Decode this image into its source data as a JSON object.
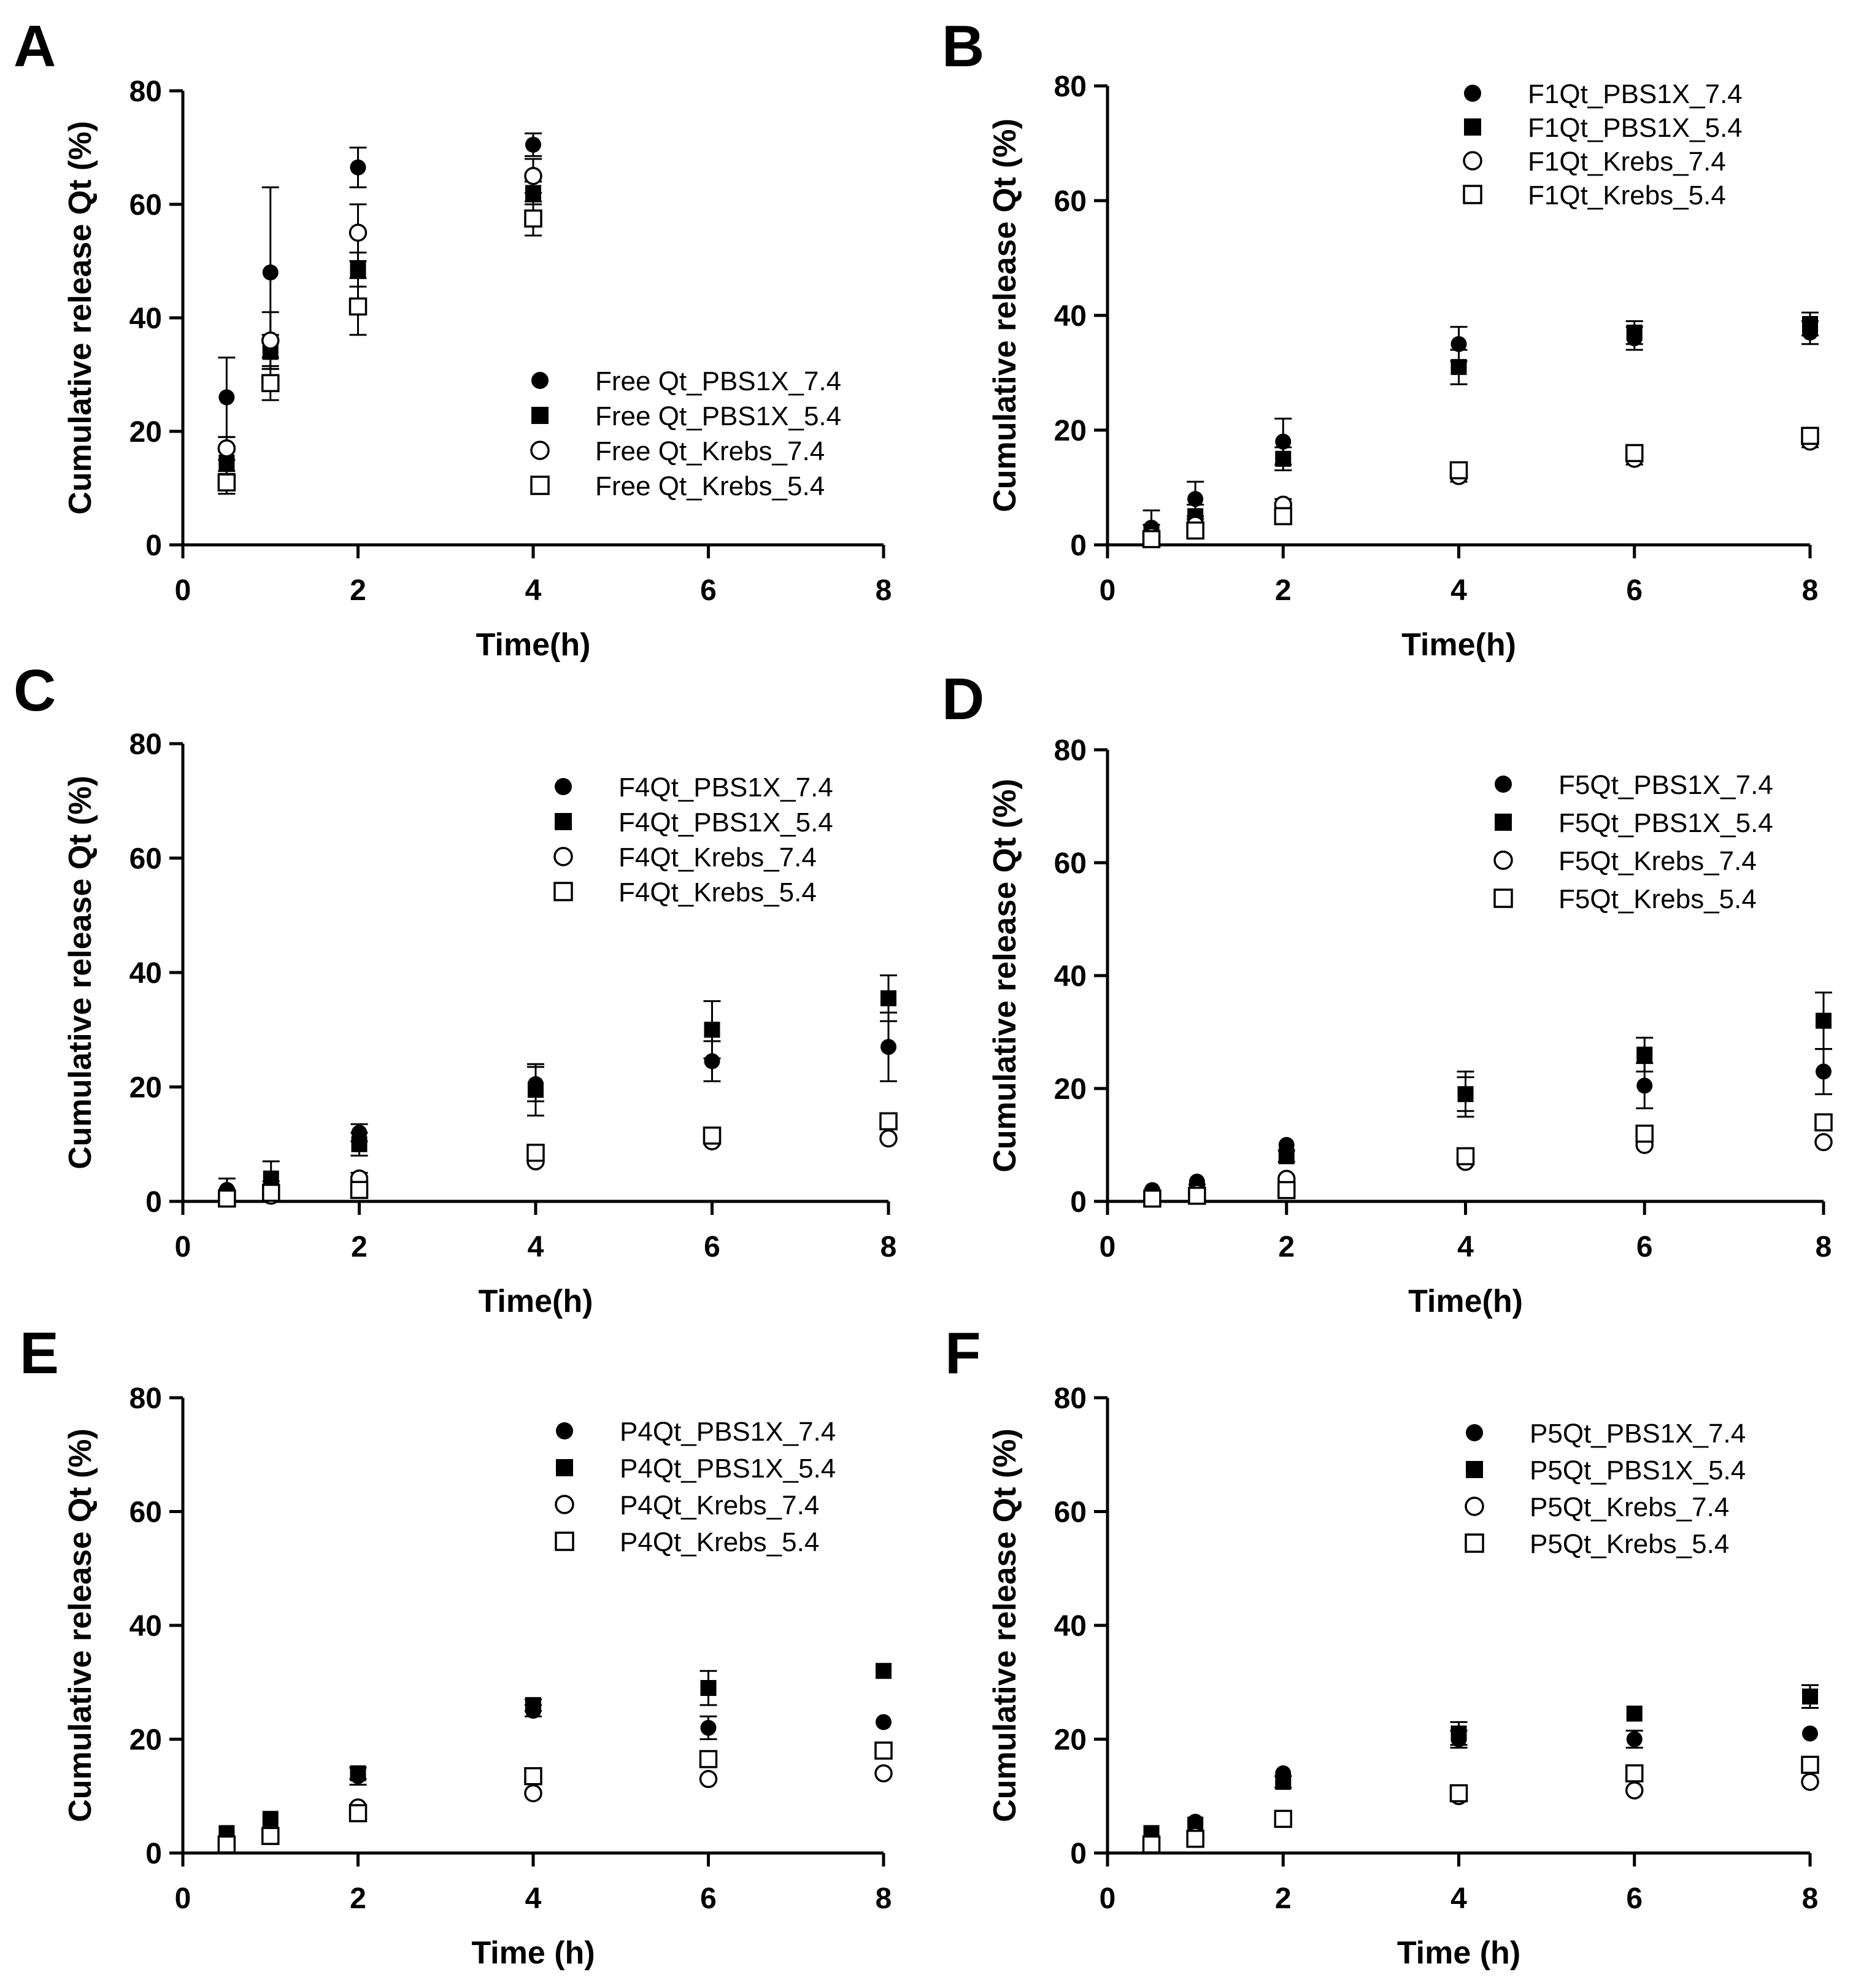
{
  "chart_data": [
    {
      "panel": "A",
      "type": "scatter",
      "xlabel": "Time(h)",
      "ylabel": "Cumulative release  Qt (%)",
      "xlim": [
        0,
        8
      ],
      "ylim": [
        0,
        80
      ],
      "xticks": [
        "0",
        "2",
        "4",
        "6",
        "8"
      ],
      "yticks": [
        "0",
        "20",
        "40",
        "60",
        "80"
      ],
      "x": [
        0.5,
        1,
        2,
        4
      ],
      "series": [
        {
          "name": "Free Qt_PBS1X_7.4",
          "marker": "circle-filled",
          "values": [
            26,
            48,
            66.5,
            70.5
          ],
          "errors": [
            7,
            15,
            3.5,
            2
          ]
        },
        {
          "name": "Free Qt_PBS1X_5.4",
          "marker": "square-filled",
          "values": [
            14.5,
            34,
            48.5,
            62
          ],
          "errors": [
            2,
            3,
            3,
            2
          ]
        },
        {
          "name": "Free Qt_Krebs_7.4",
          "marker": "circle-open",
          "values": [
            17,
            36,
            55,
            65
          ],
          "errors": [
            2,
            5,
            5,
            3
          ]
        },
        {
          "name": "Free Qt_Krebs_5.4",
          "marker": "square-open",
          "values": [
            11,
            28.5,
            42,
            57.5
          ],
          "errors": [
            2,
            3,
            5,
            3
          ]
        }
      ]
    },
    {
      "panel": "B",
      "type": "scatter",
      "xlabel": "Time(h)",
      "ylabel": "Cumulative release  Qt (%)",
      "xlim": [
        0,
        8
      ],
      "ylim": [
        0,
        80
      ],
      "xticks": [
        "0",
        "2",
        "4",
        "6",
        "8"
      ],
      "yticks": [
        "0",
        "20",
        "40",
        "60",
        "80"
      ],
      "x": [
        0.5,
        1,
        2,
        4,
        6,
        8
      ],
      "series": [
        {
          "name": "F1Qt_PBS1X_7.4",
          "marker": "circle-filled",
          "values": [
            3,
            8,
            18,
            35,
            36,
            37
          ],
          "errors": [
            3,
            3,
            4,
            3,
            2,
            2
          ]
        },
        {
          "name": "F1Qt_PBS1X_5.4",
          "marker": "square-filled",
          "values": [
            2,
            5,
            15,
            31,
            37,
            38.5
          ],
          "errors": [
            1.5,
            2,
            2,
            3,
            2,
            2
          ]
        },
        {
          "name": "F1Qt_Krebs_7.4",
          "marker": "circle-open",
          "values": [
            1.5,
            3.5,
            7,
            12,
            15,
            18
          ],
          "errors": [
            0.5,
            1,
            1,
            1,
            1,
            1
          ]
        },
        {
          "name": "F1Qt_Krebs_5.4",
          "marker": "square-open",
          "values": [
            1,
            2.5,
            5,
            13,
            16,
            19
          ],
          "errors": [
            0.5,
            0.5,
            1,
            1,
            1,
            1
          ]
        }
      ]
    },
    {
      "panel": "C",
      "type": "scatter",
      "xlabel": "Time(h)",
      "ylabel": "Cumulative release  Qt (%)",
      "xlim": [
        0,
        8
      ],
      "ylim": [
        0,
        80
      ],
      "xticks": [
        "0",
        "2",
        "4",
        "6",
        "8"
      ],
      "yticks": [
        "0",
        "20",
        "40",
        "60",
        "80"
      ],
      "x": [
        0.5,
        1,
        2,
        4,
        6,
        8
      ],
      "series": [
        {
          "name": "F4Qt_PBS1X_7.4",
          "marker": "circle-filled",
          "values": [
            2,
            2,
            12,
            20.5,
            24.5,
            27
          ],
          "errors": [
            2,
            1.5,
            1.5,
            3,
            3.5,
            6
          ]
        },
        {
          "name": "F4Qt_PBS1X_5.4",
          "marker": "square-filled",
          "values": [
            1,
            4,
            10,
            19.5,
            30,
            35.5
          ],
          "errors": [
            1,
            3,
            2,
            4.5,
            5,
            4
          ]
        },
        {
          "name": "F4Qt_Krebs_7.4",
          "marker": "circle-open",
          "values": [
            0.5,
            1,
            4,
            7,
            10.5,
            11
          ],
          "errors": [
            0.5,
            0.5,
            1,
            0.5,
            0.5,
            0.5
          ]
        },
        {
          "name": "F4Qt_Krebs_5.4",
          "marker": "square-open",
          "values": [
            0.5,
            1.5,
            2,
            8.5,
            11.5,
            14
          ],
          "errors": [
            0.5,
            0.5,
            0.5,
            0.5,
            0.5,
            0.5
          ]
        }
      ]
    },
    {
      "panel": "D",
      "type": "scatter",
      "xlabel": "Time(h)",
      "ylabel": "Cumulative release  Qt (%)",
      "xlim": [
        0,
        8
      ],
      "ylim": [
        0,
        80
      ],
      "xticks": [
        "0",
        "2",
        "4",
        "6",
        "8"
      ],
      "yticks": [
        "0",
        "20",
        "40",
        "60",
        "80"
      ],
      "x": [
        0.5,
        1,
        2,
        4,
        6,
        8
      ],
      "series": [
        {
          "name": "F5Qt_PBS1X_7.4",
          "marker": "circle-filled",
          "values": [
            2,
            3.5,
            10,
            19,
            20.5,
            23
          ],
          "errors": [
            0.5,
            0.5,
            0.5,
            4,
            4,
            4
          ]
        },
        {
          "name": "F5Qt_PBS1X_5.4",
          "marker": "square-filled",
          "values": [
            1,
            2,
            8,
            19,
            26,
            32
          ],
          "errors": [
            0.5,
            1,
            1,
            3,
            3,
            5
          ]
        },
        {
          "name": "F5Qt_Krebs_7.4",
          "marker": "circle-open",
          "values": [
            0.5,
            1.5,
            4,
            7,
            10,
            10.5
          ],
          "errors": [
            0.5,
            0.5,
            0.5,
            0.5,
            0.5,
            0.5
          ]
        },
        {
          "name": "F5Qt_Krebs_5.4",
          "marker": "square-open",
          "values": [
            0.5,
            1,
            2,
            8,
            12,
            14
          ],
          "errors": [
            0.5,
            0.5,
            0.5,
            0.5,
            0.5,
            0.5
          ]
        }
      ]
    },
    {
      "panel": "E",
      "type": "scatter",
      "xlabel": "Time (h)",
      "ylabel": "Cumulative release Qt (%)",
      "xlim": [
        0,
        8
      ],
      "ylim": [
        0,
        80
      ],
      "xticks": [
        "0",
        "2",
        "4",
        "6",
        "8"
      ],
      "yticks": [
        "0",
        "20",
        "40",
        "60",
        "80"
      ],
      "x": [
        0.5,
        1,
        2,
        4,
        6,
        8
      ],
      "series": [
        {
          "name": "P4Qt_PBS1X_7.4",
          "marker": "circle-filled",
          "values": [
            3.5,
            6,
            13.5,
            25,
            22,
            23
          ],
          "errors": [
            0.5,
            0.5,
            1.5,
            1,
            2,
            0.5
          ]
        },
        {
          "name": "P4Qt_PBS1X_5.4",
          "marker": "square-filled",
          "values": [
            3.5,
            6,
            14,
            26,
            29,
            32
          ],
          "errors": [
            0.5,
            0.5,
            1,
            1,
            3,
            0.5
          ]
        },
        {
          "name": "P4Qt_Krebs_7.4",
          "marker": "circle-open",
          "values": [
            1.5,
            3,
            8,
            10.5,
            13,
            14
          ],
          "errors": [
            0.5,
            0.5,
            0.5,
            0.5,
            0.5,
            0.5
          ]
        },
        {
          "name": "P4Qt_Krebs_5.4",
          "marker": "square-open",
          "values": [
            1.5,
            3,
            7,
            13.5,
            16.5,
            18
          ],
          "errors": [
            0.5,
            0.5,
            0.5,
            0.5,
            0.5,
            0.5
          ]
        }
      ]
    },
    {
      "panel": "F",
      "type": "scatter",
      "xlabel": "Time (h)",
      "ylabel": "Cumulative release  Qt (%)",
      "xlim": [
        0,
        8
      ],
      "ylim": [
        0,
        80
      ],
      "xticks": [
        "0",
        "2",
        "4",
        "6",
        "8"
      ],
      "yticks": [
        "0",
        "20",
        "40",
        "60",
        "80"
      ],
      "x": [
        0.5,
        1,
        2,
        4,
        6,
        8
      ],
      "series": [
        {
          "name": "P5Qt_PBS1X_7.4",
          "marker": "circle-filled",
          "values": [
            3.5,
            5.5,
            14,
            20,
            20,
            21
          ],
          "errors": [
            0.5,
            0.5,
            0.5,
            1.5,
            1.5,
            0.5
          ]
        },
        {
          "name": "P5Qt_PBS1X_5.4",
          "marker": "square-filled",
          "values": [
            3.5,
            5,
            12.5,
            21,
            24.5,
            27.5
          ],
          "errors": [
            0.5,
            0.5,
            1,
            2,
            0.5,
            2
          ]
        },
        {
          "name": "P5Qt_Krebs_7.4",
          "marker": "circle-open",
          "values": [
            1.5,
            3,
            6,
            10,
            11,
            12.5
          ],
          "errors": [
            0.5,
            0.5,
            0.5,
            0.5,
            0.5,
            0.5
          ]
        },
        {
          "name": "P5Qt_Krebs_5.4",
          "marker": "square-open",
          "values": [
            1.5,
            2.5,
            6,
            10.5,
            14,
            15.5
          ],
          "errors": [
            0.5,
            0.5,
            0.5,
            0.5,
            0.5,
            0.5
          ]
        }
      ]
    }
  ]
}
